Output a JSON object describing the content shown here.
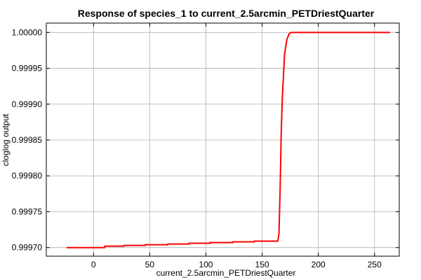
{
  "chart_data": {
    "type": "line",
    "title": "Response of species_1 to current_2.5arcmin_PETDriestQuarter",
    "xlabel": "current_2.5arcmin_PETDriestQuarter",
    "ylabel": "cloglog output",
    "xlim": [
      -42,
      272
    ],
    "ylim": [
      0.999688,
      1.000013
    ],
    "x_ticks": [
      0,
      50,
      100,
      150,
      200,
      250
    ],
    "x_tick_labels": [
      "0",
      "50",
      "100",
      "150",
      "200",
      "250"
    ],
    "y_ticks": [
      0.9997,
      0.99975,
      0.9998,
      0.99985,
      0.9999,
      0.99995,
      1.0
    ],
    "y_tick_labels": [
      "0.99970",
      "0.99975",
      "0.99980",
      "0.99985",
      "0.99990",
      "0.99995",
      "1.00000"
    ],
    "grid": true,
    "line_color": "#ff0000",
    "series": [
      {
        "x": [
          -24,
          10,
          10,
          27,
          27,
          46,
          46,
          66,
          66,
          85,
          85,
          104,
          104,
          124,
          124,
          143,
          143,
          164,
          165,
          166,
          167,
          168,
          169,
          170,
          172,
          174,
          176,
          264
        ],
        "y": [
          0.9997,
          0.9997,
          0.999702,
          0.999702,
          0.999703,
          0.999703,
          0.999704,
          0.999704,
          0.999705,
          0.999705,
          0.999706,
          0.999706,
          0.999707,
          0.999707,
          0.999708,
          0.999708,
          0.999709,
          0.999709,
          0.99972,
          0.99978,
          0.99986,
          0.99991,
          0.99994,
          0.99997,
          0.99999,
          0.999998,
          1.0,
          1.0
        ]
      }
    ]
  }
}
